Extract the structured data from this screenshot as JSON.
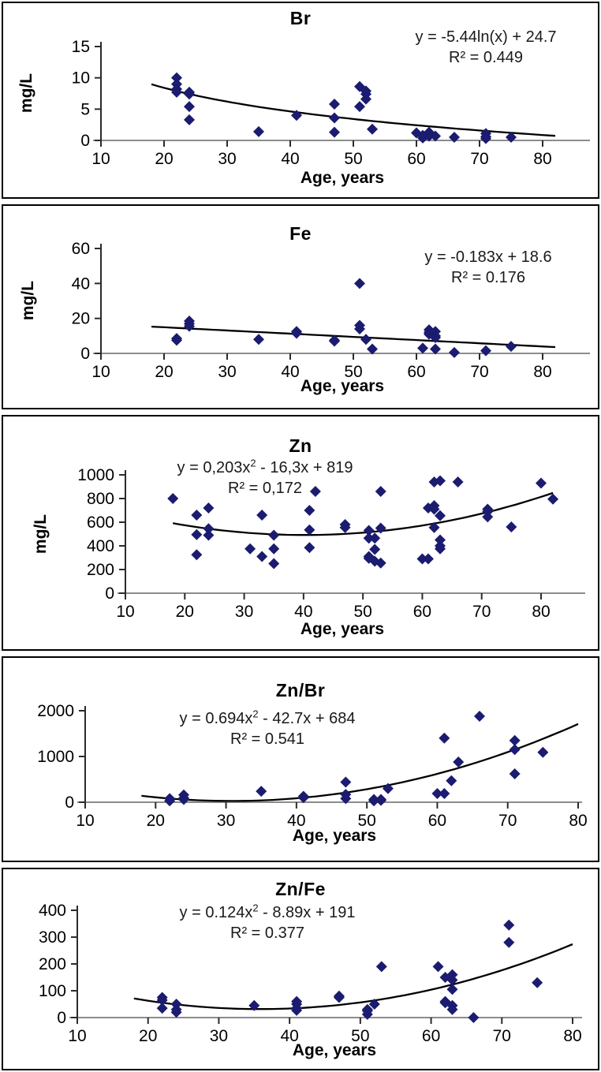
{
  "colors": {
    "marker": "#1b1b70",
    "trend": "#000000",
    "x_axis": "#8c8c8c",
    "y_axis": "#2b2b2b",
    "text": "#000000"
  },
  "chart_data": [
    {
      "type": "scatter",
      "title": "Br",
      "equation": {
        "pre": "y = -5.44ln(x) + 24.7",
        "sup": "",
        "post": ""
      },
      "r2_label": "R² = 0.449",
      "xlabel": "Age, years",
      "ylabel": "mg/L",
      "xlim": [
        10,
        87.5
      ],
      "ylim": [
        0,
        15
      ],
      "x_ticks": [
        10,
        20,
        30,
        40,
        50,
        60,
        70,
        80
      ],
      "y_ticks": [
        0,
        5,
        10,
        15
      ],
      "trend": {
        "kind": "log",
        "a": -5.44,
        "b": 24.7,
        "c": 0,
        "x_range": [
          18,
          82
        ]
      },
      "points": [
        [
          22,
          10
        ],
        [
          22,
          9
        ],
        [
          22,
          8.2
        ],
        [
          22,
          7.7
        ],
        [
          24,
          7.7
        ],
        [
          24,
          7.4
        ],
        [
          24,
          5.4
        ],
        [
          24,
          3.3
        ],
        [
          35,
          1.4
        ],
        [
          41,
          4
        ],
        [
          47,
          5.8
        ],
        [
          47,
          3.6
        ],
        [
          47,
          1.3
        ],
        [
          51,
          8.6
        ],
        [
          51,
          5.4
        ],
        [
          52,
          7.9
        ],
        [
          52,
          7.4
        ],
        [
          52,
          6.6
        ],
        [
          53,
          1.8
        ],
        [
          60,
          1.2
        ],
        [
          61,
          0.8
        ],
        [
          61,
          0.4
        ],
        [
          62,
          1.3
        ],
        [
          62,
          0.7
        ],
        [
          63,
          0.7
        ],
        [
          66,
          0.5
        ],
        [
          71,
          1.1
        ],
        [
          71,
          0.6
        ],
        [
          71,
          0.3
        ],
        [
          75,
          0.5
        ]
      ]
    },
    {
      "type": "scatter",
      "title": "Fe",
      "equation": {
        "pre": "y = -0.183x + 18.6",
        "sup": "",
        "post": ""
      },
      "r2_label": "R² = 0.176",
      "xlabel": "Age, years",
      "ylabel": "mg/L",
      "xlim": [
        10,
        87.5
      ],
      "ylim": [
        0,
        60
      ],
      "x_ticks": [
        10,
        20,
        30,
        40,
        50,
        60,
        70,
        80
      ],
      "y_ticks": [
        0,
        20,
        40,
        60
      ],
      "trend": {
        "kind": "linear",
        "a": -0.183,
        "b": 18.6,
        "c": 0,
        "x_range": [
          18,
          82
        ]
      },
      "points": [
        [
          22,
          8.5
        ],
        [
          22,
          7.5
        ],
        [
          24,
          18.5
        ],
        [
          24,
          17
        ],
        [
          24,
          15.5
        ],
        [
          35,
          8
        ],
        [
          41,
          12.5
        ],
        [
          41,
          11.5
        ],
        [
          47,
          7.5
        ],
        [
          47,
          7
        ],
        [
          51,
          40
        ],
        [
          51,
          16
        ],
        [
          51,
          14
        ],
        [
          52,
          8
        ],
        [
          53,
          2.5
        ],
        [
          61,
          3
        ],
        [
          62,
          13.5
        ],
        [
          62,
          12
        ],
        [
          62,
          11
        ],
        [
          63,
          12.5
        ],
        [
          63,
          10
        ],
        [
          63,
          9
        ],
        [
          63,
          2.5
        ],
        [
          66,
          0.5
        ],
        [
          71,
          1.5
        ],
        [
          75,
          4
        ]
      ]
    },
    {
      "type": "scatter",
      "title": "Zn",
      "equation": {
        "pre": "y = 0,203x",
        "sup": "2",
        "post": " - 16,3x + 819"
      },
      "r2_label": "R² = 0,172",
      "xlabel": "Age, years",
      "ylabel": "mg/L",
      "xlim": [
        10,
        86
      ],
      "ylim": [
        0,
        1000
      ],
      "x_ticks": [
        10,
        20,
        30,
        40,
        50,
        60,
        70,
        80
      ],
      "y_ticks": [
        0,
        200,
        400,
        600,
        800,
        1000
      ],
      "trend": {
        "kind": "poly2",
        "a": 0.203,
        "b": -16.3,
        "c": 819,
        "x_range": [
          18,
          82
        ]
      },
      "points": [
        [
          18,
          800
        ],
        [
          22,
          660
        ],
        [
          22,
          495
        ],
        [
          22,
          325
        ],
        [
          24,
          720
        ],
        [
          24,
          545
        ],
        [
          24,
          490
        ],
        [
          31,
          375
        ],
        [
          33,
          660
        ],
        [
          33,
          310
        ],
        [
          35,
          490
        ],
        [
          35,
          375
        ],
        [
          35,
          250
        ],
        [
          41,
          700
        ],
        [
          41,
          535
        ],
        [
          41,
          385
        ],
        [
          42,
          860
        ],
        [
          47,
          580
        ],
        [
          47,
          555
        ],
        [
          51,
          530
        ],
        [
          51,
          465
        ],
        [
          51,
          310
        ],
        [
          51,
          295
        ],
        [
          52,
          465
        ],
        [
          52,
          370
        ],
        [
          52,
          270
        ],
        [
          53,
          860
        ],
        [
          53,
          550
        ],
        [
          53,
          255
        ],
        [
          60,
          290
        ],
        [
          61,
          720
        ],
        [
          61,
          290
        ],
        [
          62,
          940
        ],
        [
          62,
          740
        ],
        [
          62,
          710
        ],
        [
          62,
          555
        ],
        [
          63,
          950
        ],
        [
          63,
          655
        ],
        [
          63,
          450
        ],
        [
          63,
          400
        ],
        [
          63,
          375
        ],
        [
          66,
          940
        ],
        [
          71,
          710
        ],
        [
          71,
          690
        ],
        [
          71,
          645
        ],
        [
          75,
          560
        ],
        [
          80,
          930
        ],
        [
          82,
          795
        ]
      ]
    },
    {
      "type": "scatter",
      "title": "Zn/Br",
      "equation": {
        "pre": "y = 0.694x",
        "sup": "2",
        "post": " - 42.7x + 684"
      },
      "r2_label": "R² = 0.541",
      "xlabel": "Age, years",
      "ylabel": "",
      "xlim": [
        10,
        80
      ],
      "ylim": [
        0,
        2000
      ],
      "x_ticks": [
        10,
        20,
        30,
        40,
        50,
        60,
        70,
        80
      ],
      "y_ticks": [
        0,
        1000,
        2000
      ],
      "trend": {
        "kind": "poly2",
        "a": 0.694,
        "b": -42.7,
        "c": 684,
        "x_range": [
          18,
          80
        ]
      },
      "points": [
        [
          22,
          80
        ],
        [
          22,
          30
        ],
        [
          24,
          160
        ],
        [
          24,
          90
        ],
        [
          24,
          60
        ],
        [
          35,
          240
        ],
        [
          41,
          130
        ],
        [
          41,
          100
        ],
        [
          47,
          440
        ],
        [
          47,
          170
        ],
        [
          47,
          80
        ],
        [
          51,
          60
        ],
        [
          51,
          30
        ],
        [
          52,
          60
        ],
        [
          52,
          40
        ],
        [
          53,
          300
        ],
        [
          60,
          190
        ],
        [
          61,
          190
        ],
        [
          61,
          1400
        ],
        [
          62,
          470
        ],
        [
          63,
          880
        ],
        [
          66,
          1880
        ],
        [
          71,
          1350
        ],
        [
          71,
          1150
        ],
        [
          71,
          620
        ],
        [
          75,
          1090
        ]
      ]
    },
    {
      "type": "scatter",
      "title": "Zn/Fe",
      "equation": {
        "pre": "y = 0.124x",
        "sup": "2",
        "post": " - 8.89x + 191"
      },
      "r2_label": "R² = 0.377",
      "xlabel": "Age, years",
      "ylabel": "",
      "xlim": [
        10,
        80
      ],
      "ylim": [
        0,
        400
      ],
      "x_ticks": [
        10,
        20,
        30,
        40,
        50,
        60,
        70,
        80
      ],
      "y_ticks": [
        0,
        100,
        200,
        300,
        400
      ],
      "trend": {
        "kind": "poly2",
        "a": 0.124,
        "b": -8.89,
        "c": 191,
        "x_range": [
          18,
          80
        ]
      },
      "points": [
        [
          22,
          75
        ],
        [
          22,
          65
        ],
        [
          22,
          35
        ],
        [
          24,
          50
        ],
        [
          24,
          30
        ],
        [
          24,
          20
        ],
        [
          35,
          45
        ],
        [
          41,
          60
        ],
        [
          41,
          50
        ],
        [
          41,
          35
        ],
        [
          41,
          27
        ],
        [
          47,
          80
        ],
        [
          47,
          75
        ],
        [
          51,
          30
        ],
        [
          51,
          25
        ],
        [
          51,
          12
        ],
        [
          52,
          50
        ],
        [
          53,
          190
        ],
        [
          61,
          190
        ],
        [
          62,
          150
        ],
        [
          62,
          60
        ],
        [
          62,
          55
        ],
        [
          63,
          160
        ],
        [
          63,
          140
        ],
        [
          63,
          105
        ],
        [
          63,
          45
        ],
        [
          63,
          30
        ],
        [
          66,
          0
        ],
        [
          71,
          345
        ],
        [
          71,
          280
        ],
        [
          75,
          130
        ]
      ]
    }
  ]
}
